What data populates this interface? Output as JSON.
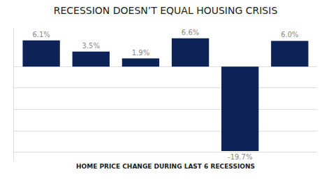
{
  "chart_data": {
    "type": "bar",
    "title": "RECESSION DOESN’T EQUAL HOUSING CRISIS",
    "xlabel": "HOME PRICE CHANGE DURING LAST 6 RECESSIONS",
    "categories": [
      null,
      null,
      null,
      null,
      null,
      null
    ],
    "values": [
      6.1,
      3.5,
      1.9,
      6.6,
      -19.7,
      6.0
    ],
    "value_labels": [
      "6.1%",
      "3.5%",
      "1.9%",
      "6.6%",
      "-19.7%",
      "6.0%"
    ],
    "data_labels": true,
    "color": "#0d2257",
    "ylim": [
      -22,
      9
    ],
    "yticks": [
      -20,
      -15,
      -10,
      -5,
      0
    ],
    "grid": true,
    "tick_labels": false
  }
}
